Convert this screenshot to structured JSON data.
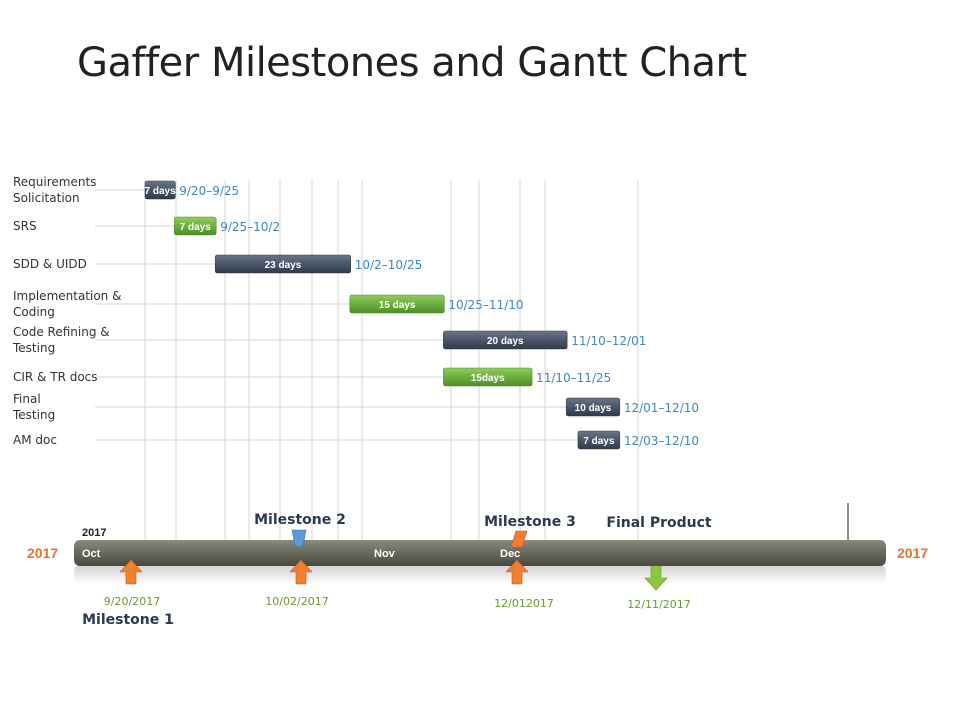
{
  "slide": {
    "title": "Gaffer Milestones and Gantt Chart"
  },
  "colors": {
    "dark_bar": "#4a5568",
    "green_bar": "#6cae3e",
    "range_text": "#3f86c4",
    "axis_dark": "#6b6b60",
    "year_orange": "#e8722c",
    "orange_arrow": "#f08030",
    "green_arrow": "#8dc63f",
    "milestone_blue": "#5b9bd5"
  },
  "chart_data": {
    "type": "gantt",
    "tasks": [
      {
        "name": [
          "Requirements",
          "Solicitation"
        ],
        "start": "2017-09-20",
        "end": "2017-09-25",
        "duration_label": "7 days",
        "range_label": "9/20–9/25",
        "color": "dark"
      },
      {
        "name": [
          "SRS"
        ],
        "start": "2017-09-25",
        "end": "2017-10-02",
        "duration_label": "7 days",
        "range_label": "9/25–10/2",
        "color": "green"
      },
      {
        "name": [
          "SDD & UIDD"
        ],
        "start": "2017-10-02",
        "end": "2017-10-25",
        "duration_label": "23 days",
        "range_label": "10/2–10/25",
        "color": "dark"
      },
      {
        "name": [
          "Implementation &",
          "Coding"
        ],
        "start": "2017-10-25",
        "end": "2017-11-10",
        "duration_label": "15 days",
        "range_label": "10/25–11/10",
        "color": "green"
      },
      {
        "name": [
          "Code Refining &",
          "Testing"
        ],
        "start": "2017-11-10",
        "end": "2017-12-01",
        "duration_label": "20 days",
        "range_label": "11/10–12/01",
        "color": "dark"
      },
      {
        "name": [
          "CIR & TR docs"
        ],
        "start": "2017-11-10",
        "end": "2017-11-25",
        "duration_label": "15days",
        "range_label": "11/10–11/25",
        "color": "green"
      },
      {
        "name": [
          "Final",
          "Testing"
        ],
        "start": "2017-12-01",
        "end": "2017-12-10",
        "duration_label": "10 days",
        "range_label": "12/01–12/10",
        "color": "dark"
      },
      {
        "name": [
          "AM  doc"
        ],
        "start": "2017-12-03",
        "end": "2017-12-10",
        "duration_label": "7 days",
        "range_label": "12/03–12/10",
        "color": "dark"
      }
    ],
    "timeline": {
      "year_left": "2017",
      "year_right": "2017",
      "year_above": "2017",
      "months": [
        {
          "label": "Oct",
          "date": "2017-10-01"
        },
        {
          "label": "Nov",
          "date": "2017-11-01"
        },
        {
          "label": "Dec",
          "date": "2017-12-01"
        }
      ]
    },
    "milestones": [
      {
        "name": "Milestone 1",
        "date": "2017-09-20",
        "date_label": "9/20/2017",
        "arrow": "up-orange",
        "name_position": "below"
      },
      {
        "name": "Milestone 2",
        "date": "2017-10-02",
        "date_label": "10/02/2017",
        "arrow": "up-orange",
        "name_position": "above",
        "marker": "blue"
      },
      {
        "name": "Milestone 3",
        "date": "2017-12-01",
        "date_label": "12/012017",
        "arrow": "up-orange",
        "name_position": "above",
        "marker": "orange"
      },
      {
        "name": "Final Product",
        "date": "2017-12-11",
        "date_label": "12/11/2017",
        "arrow": "down-green",
        "name_position": "above"
      }
    ]
  }
}
